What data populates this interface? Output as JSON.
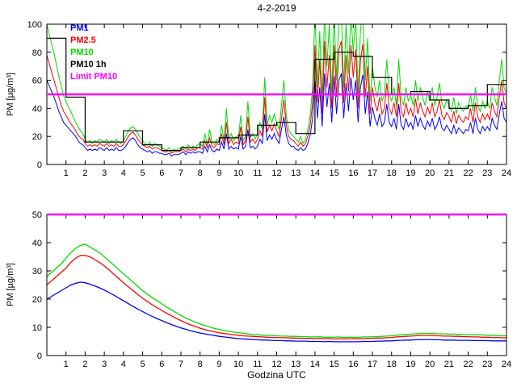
{
  "chart_data": [
    {
      "type": "line",
      "title": "4-2-2019",
      "ylabel": "PM [µg/m³]",
      "xlabel": "",
      "xlim": [
        0,
        24
      ],
      "ylim": [
        0,
        100
      ],
      "xticks": [
        1,
        2,
        3,
        4,
        5,
        6,
        7,
        8,
        9,
        10,
        11,
        12,
        13,
        14,
        15,
        16,
        17,
        18,
        19,
        20,
        21,
        22,
        23,
        24
      ],
      "yticks": [
        0,
        20,
        40,
        60,
        80,
        100
      ],
      "grid": false,
      "legend": {
        "position": "top-left",
        "entries": [
          {
            "label": "PM1",
            "color": "#0000ff"
          },
          {
            "label": "PM2.5",
            "color": "#ff0000"
          },
          {
            "label": "PM10",
            "color": "#00dd00"
          },
          {
            "label": "PM10 1h",
            "color": "#000000"
          },
          {
            "label": "Limit PM10",
            "color": "#ff00ff"
          }
        ]
      },
      "x_start": 0,
      "x_step": 0.125,
      "series": [
        {
          "name": "PM10",
          "color": "#00dd00",
          "values": [
            100,
            93,
            86,
            79,
            71,
            63,
            56,
            49,
            45,
            41,
            38,
            34,
            30,
            27,
            24,
            22,
            18,
            16,
            17,
            15,
            17,
            16,
            18,
            17,
            16,
            18,
            15,
            17,
            16,
            18,
            16,
            15,
            17,
            20,
            24,
            26,
            27,
            25,
            22,
            19,
            17,
            15,
            14,
            16,
            13,
            15,
            14,
            13,
            12,
            11,
            10,
            12,
            9,
            11,
            10,
            11,
            12,
            13,
            11,
            14,
            12,
            13,
            12,
            14,
            15,
            13,
            22,
            14,
            25,
            16,
            14,
            18,
            16,
            28,
            17,
            40,
            18,
            22,
            17,
            20,
            18,
            35,
            17,
            20,
            45,
            19,
            22,
            18,
            22,
            30,
            25,
            62,
            28,
            35,
            30,
            36,
            30,
            25,
            42,
            60,
            35,
            25,
            22,
            20,
            18,
            16,
            20,
            15,
            18,
            25,
            35,
            55,
            108,
            55,
            95,
            45,
            110,
            70,
            100,
            50,
            108,
            60,
            105,
            110,
            55,
            100,
            65,
            108,
            80,
            105,
            50,
            95,
            110,
            60,
            90,
            45,
            70,
            55,
            48,
            60,
            45,
            50,
            75,
            50,
            45,
            55,
            42,
            75,
            48,
            42,
            55,
            45,
            50,
            42,
            60,
            45,
            55,
            48,
            42,
            52,
            45,
            55,
            42,
            48,
            58,
            44,
            40,
            46,
            42,
            38,
            48,
            36,
            44,
            40,
            38,
            42,
            40,
            50,
            38,
            55,
            42,
            38,
            45,
            40,
            45,
            40,
            55,
            48,
            42,
            60,
            75,
            55,
            50
          ]
        },
        {
          "name": "PM2.5",
          "color": "#ff0000",
          "values": [
            78,
            72,
            66,
            60,
            54,
            48,
            42,
            38,
            35,
            32,
            29,
            27,
            24,
            21,
            19,
            18,
            15,
            13,
            14,
            13,
            14,
            13,
            15,
            14,
            13,
            15,
            13,
            14,
            13,
            15,
            13,
            13,
            14,
            17,
            20,
            22,
            23,
            21,
            18,
            16,
            14,
            13,
            12,
            13,
            11,
            12,
            12,
            11,
            10,
            9,
            9,
            10,
            8,
            9,
            9,
            9,
            10,
            11,
            9,
            11,
            10,
            11,
            10,
            12,
            12,
            11,
            17,
            12,
            19,
            13,
            12,
            15,
            14,
            22,
            14,
            30,
            15,
            18,
            14,
            16,
            15,
            27,
            14,
            17,
            34,
            16,
            18,
            15,
            18,
            24,
            20,
            48,
            23,
            28,
            24,
            29,
            24,
            20,
            33,
            46,
            28,
            20,
            18,
            17,
            15,
            13,
            16,
            13,
            15,
            20,
            28,
            44,
            85,
            44,
            75,
            36,
            88,
            55,
            78,
            40,
            85,
            48,
            82,
            88,
            44,
            78,
            52,
            85,
            62,
            82,
            40,
            74,
            86,
            48,
            70,
            36,
            55,
            44,
            38,
            48,
            36,
            40,
            58,
            40,
            36,
            44,
            34,
            58,
            38,
            34,
            44,
            36,
            40,
            34,
            47,
            36,
            44,
            38,
            34,
            41,
            36,
            44,
            34,
            38,
            46,
            35,
            32,
            37,
            34,
            30,
            38,
            29,
            35,
            32,
            30,
            34,
            32,
            40,
            30,
            44,
            34,
            30,
            36,
            32,
            36,
            32,
            44,
            38,
            34,
            48,
            60,
            44,
            40
          ]
        },
        {
          "name": "PM1",
          "color": "#0000ff",
          "values": [
            60,
            56,
            52,
            48,
            43,
            38,
            34,
            30,
            28,
            26,
            24,
            22,
            20,
            17,
            15,
            14,
            12,
            10,
            11,
            10,
            11,
            10,
            12,
            11,
            10,
            12,
            10,
            11,
            10,
            12,
            10,
            10,
            11,
            13,
            16,
            18,
            19,
            17,
            14,
            12,
            11,
            10,
            9,
            10,
            8,
            9,
            9,
            8,
            8,
            7,
            7,
            8,
            6,
            7,
            7,
            7,
            8,
            9,
            7,
            9,
            8,
            9,
            8,
            9,
            9,
            8,
            13,
            9,
            14,
            10,
            9,
            11,
            10,
            16,
            11,
            22,
            11,
            13,
            11,
            12,
            11,
            20,
            11,
            13,
            25,
            12,
            13,
            11,
            13,
            18,
            15,
            36,
            17,
            21,
            18,
            22,
            18,
            15,
            25,
            34,
            21,
            15,
            13,
            13,
            11,
            10,
            12,
            10,
            11,
            15,
            21,
            33,
            62,
            33,
            55,
            27,
            65,
            41,
            58,
            30,
            63,
            36,
            60,
            65,
            33,
            58,
            38,
            62,
            46,
            60,
            30,
            55,
            64,
            36,
            52,
            27,
            41,
            33,
            28,
            36,
            27,
            30,
            43,
            30,
            27,
            33,
            25,
            43,
            28,
            25,
            33,
            27,
            30,
            25,
            35,
            27,
            33,
            28,
            25,
            31,
            27,
            33,
            25,
            28,
            34,
            26,
            24,
            28,
            25,
            22,
            28,
            22,
            26,
            24,
            22,
            25,
            24,
            30,
            22,
            33,
            25,
            22,
            27,
            24,
            27,
            24,
            33,
            28,
            25,
            36,
            45,
            33,
            30
          ]
        }
      ],
      "step_series": {
        "name": "PM10 1h",
        "color": "#000000",
        "hourly_values": [
          90,
          48,
          16,
          16,
          24,
          14,
          10,
          12,
          16,
          19,
          21,
          28,
          30,
          22,
          75,
          80,
          77,
          62,
          50,
          52,
          46,
          40,
          42,
          57
        ]
      },
      "limit_line": {
        "name": "Limit PM10",
        "color": "#ff00ff",
        "y": 50
      }
    },
    {
      "type": "line",
      "title": "",
      "ylabel": "PM [µg/m³]",
      "xlabel": "Godzina UTC",
      "xlim": [
        0,
        24
      ],
      "ylim": [
        0,
        50
      ],
      "xticks": [
        1,
        2,
        3,
        4,
        5,
        6,
        7,
        8,
        9,
        10,
        11,
        12,
        13,
        14,
        15,
        16,
        17,
        18,
        19,
        20,
        21,
        22,
        23,
        24
      ],
      "yticks": [
        0,
        10,
        20,
        30,
        40,
        50
      ],
      "grid": false,
      "x_start": 0,
      "x_step": 0.25,
      "series": [
        {
          "name": "PM10",
          "color": "#00dd00",
          "values": [
            28.0,
            29.5,
            31.0,
            32.5,
            34.5,
            36.5,
            38.0,
            39.0,
            39.5,
            38.5,
            37.5,
            36.5,
            35.0,
            33.5,
            32.0,
            30.5,
            29.0,
            27.5,
            26.0,
            24.5,
            23.0,
            21.8,
            20.5,
            19.5,
            18.3,
            17.2,
            16.2,
            15.2,
            14.2,
            13.3,
            12.6,
            11.8,
            11.2,
            10.6,
            10.1,
            9.6,
            9.2,
            8.9,
            8.6,
            8.3,
            8.1,
            7.9,
            7.7,
            7.5,
            7.4,
            7.2,
            7.1,
            7.1,
            7.0,
            6.9,
            6.9,
            6.8,
            6.8,
            6.7,
            6.7,
            6.6,
            6.6,
            6.7,
            6.5,
            6.5,
            6.5,
            6.6,
            6.4,
            6.5,
            6.5,
            6.4,
            6.6,
            6.6,
            6.7,
            6.7,
            6.8,
            6.9,
            7.0,
            7.2,
            7.4,
            7.5,
            7.6,
            7.7,
            7.8,
            7.9,
            7.8,
            7.8,
            7.7,
            7.7,
            7.6,
            7.6,
            7.5,
            7.5,
            7.4,
            7.4,
            7.3,
            7.3,
            7.2,
            7.1,
            7.1,
            7.0,
            7.0
          ]
        },
        {
          "name": "PM2.5",
          "color": "#ff0000",
          "values": [
            25.0,
            26.5,
            28.0,
            29.5,
            31.0,
            33.0,
            34.5,
            35.5,
            35.5,
            35.0,
            34.0,
            33.0,
            31.8,
            30.3,
            28.8,
            27.3,
            25.8,
            24.4,
            23.0,
            21.6,
            20.3,
            19.1,
            18.0,
            17.0,
            16.0,
            15.0,
            14.1,
            13.2,
            12.4,
            11.6,
            10.9,
            10.3,
            9.7,
            9.2,
            8.8,
            8.4,
            8.1,
            7.8,
            7.6,
            7.4,
            7.2,
            7.0,
            6.9,
            6.8,
            6.7,
            6.6,
            6.5,
            6.4,
            6.4,
            6.3,
            6.3,
            6.2,
            6.2,
            6.1,
            6.1,
            6.1,
            6.0,
            6.1,
            6.0,
            6.0,
            5.9,
            6.0,
            5.9,
            5.9,
            6.0,
            5.9,
            6.0,
            6.1,
            6.1,
            6.2,
            6.2,
            6.3,
            6.4,
            6.6,
            6.7,
            6.8,
            6.9,
            7.0,
            7.1,
            7.1,
            7.1,
            7.0,
            7.0,
            6.9,
            6.9,
            6.8,
            6.8,
            6.7,
            6.7,
            6.6,
            6.6,
            6.5,
            6.5,
            6.4,
            6.4,
            6.3,
            6.3
          ]
        },
        {
          "name": "PM1",
          "color": "#0000ff",
          "values": [
            20.0,
            21.0,
            22.0,
            23.0,
            24.0,
            25.0,
            25.6,
            26.0,
            25.8,
            25.3,
            24.7,
            24.0,
            23.2,
            22.3,
            21.4,
            20.4,
            19.4,
            18.4,
            17.4,
            16.5,
            15.6,
            14.7,
            13.9,
            13.1,
            12.4,
            11.7,
            11.0,
            10.4,
            9.8,
            9.3,
            8.8,
            8.4,
            8.0,
            7.7,
            7.4,
            7.1,
            6.8,
            6.6,
            6.4,
            6.2,
            6.0,
            5.9,
            5.8,
            5.7,
            5.6,
            5.5,
            5.5,
            5.4,
            5.3,
            5.3,
            5.2,
            5.2,
            5.1,
            5.1,
            5.1,
            5.0,
            5.0,
            5.0,
            4.9,
            5.0,
            4.9,
            4.9,
            4.9,
            4.9,
            4.9,
            4.9,
            5.0,
            5.0,
            5.0,
            5.1,
            5.1,
            5.2,
            5.2,
            5.3,
            5.4,
            5.5,
            5.5,
            5.6,
            5.6,
            5.7,
            5.7,
            5.6,
            5.6,
            5.5,
            5.5,
            5.5,
            5.4,
            5.4,
            5.4,
            5.3,
            5.3,
            5.3,
            5.3,
            5.2,
            5.2,
            5.2,
            5.2
          ]
        }
      ],
      "limit_line": {
        "name": "Limit PM10",
        "color": "#ff00ff",
        "y": 50
      }
    }
  ]
}
